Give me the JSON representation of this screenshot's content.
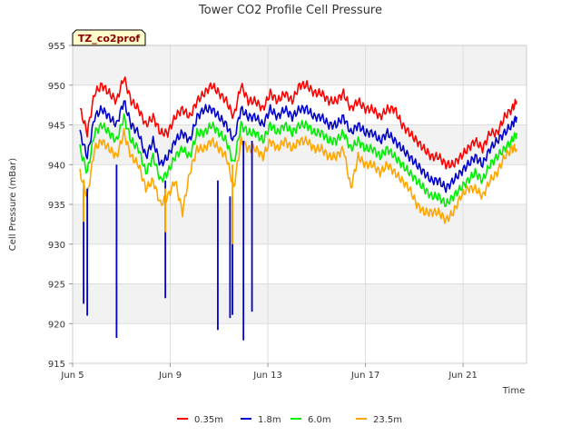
{
  "chart_data": {
    "type": "line",
    "title": "Tower CO2 Profile Cell Pressure",
    "badge": "TZ_co2prof",
    "xlabel": "Time",
    "ylabel": "Cell Pressure (mBar)",
    "xlim": [
      5.0,
      23.6
    ],
    "ylim": [
      915,
      955
    ],
    "x_ticks": [
      {
        "value": 5,
        "label": "Jun 5"
      },
      {
        "value": 9,
        "label": "Jun 9"
      },
      {
        "value": 13,
        "label": "Jun 13"
      },
      {
        "value": 17,
        "label": "Jun 17"
      },
      {
        "value": 21,
        "label": "Jun 21"
      }
    ],
    "y_ticks": [
      915,
      920,
      925,
      930,
      935,
      940,
      945,
      950,
      955
    ],
    "grid": true,
    "legend_position": "bottom",
    "series": [
      {
        "name": "0.35m",
        "color": "#ff0000",
        "x": [
          5.3,
          5.6,
          5.9,
          6.2,
          6.5,
          6.8,
          7.1,
          7.4,
          7.7,
          8.0,
          8.3,
          8.6,
          8.9,
          9.2,
          9.5,
          9.8,
          10.1,
          10.4,
          10.7,
          11.0,
          11.3,
          11.6,
          11.9,
          12.2,
          12.5,
          12.8,
          13.1,
          13.4,
          13.7,
          14.0,
          14.3,
          14.6,
          14.9,
          15.2,
          15.5,
          15.8,
          16.1,
          16.4,
          16.7,
          17.0,
          17.3,
          17.6,
          17.9,
          18.2,
          18.5,
          18.8,
          19.1,
          19.4,
          19.7,
          20.0,
          20.3,
          20.6,
          20.9,
          21.2,
          21.5,
          21.8,
          22.1,
          22.4,
          22.7,
          23.0,
          23.2
        ],
        "values": [
          947,
          944,
          949,
          950,
          949,
          948,
          951,
          948,
          947,
          945,
          946,
          944,
          944,
          946,
          947,
          946,
          948,
          949,
          950,
          949,
          948,
          946,
          950,
          948,
          948,
          947,
          949,
          948,
          949,
          948,
          950,
          950,
          949,
          949,
          948,
          948,
          949,
          947,
          948,
          947,
          947,
          946,
          947,
          947,
          945,
          944,
          943,
          942,
          941,
          941,
          940,
          940,
          941,
          942,
          943,
          942,
          944,
          944,
          946,
          947,
          948
        ]
      },
      {
        "name": "1.8m",
        "color": "#0000cc",
        "x": [
          5.3,
          5.6,
          5.9,
          6.2,
          6.5,
          6.8,
          7.1,
          7.4,
          7.7,
          8.0,
          8.3,
          8.6,
          8.9,
          9.2,
          9.5,
          9.8,
          10.1,
          10.4,
          10.7,
          11.0,
          11.3,
          11.6,
          11.9,
          12.2,
          12.5,
          12.8,
          13.1,
          13.4,
          13.7,
          14.0,
          14.3,
          14.6,
          14.9,
          15.2,
          15.5,
          15.8,
          16.1,
          16.4,
          16.7,
          17.0,
          17.3,
          17.6,
          17.9,
          18.2,
          18.5,
          18.8,
          19.1,
          19.4,
          19.7,
          20.0,
          20.3,
          20.6,
          20.9,
          21.2,
          21.5,
          21.8,
          22.1,
          22.4,
          22.7,
          23.0,
          23.2
        ],
        "values": [
          944,
          941,
          946,
          947,
          946,
          945,
          948,
          945,
          944,
          941,
          943,
          940,
          941,
          943,
          944,
          943,
          946,
          947,
          947,
          946,
          945,
          943,
          947,
          946,
          946,
          945,
          947,
          946,
          947,
          946,
          947,
          947,
          946,
          946,
          945,
          945,
          946,
          944,
          945,
          944,
          944,
          943,
          944,
          943,
          942,
          941,
          940,
          939,
          938,
          938,
          937,
          938,
          939,
          940,
          941,
          940,
          942,
          943,
          944,
          945,
          946
        ]
      },
      {
        "name": "6.0m",
        "color": "#00ee00",
        "x": [
          5.3,
          5.6,
          5.9,
          6.2,
          6.5,
          6.8,
          7.1,
          7.4,
          7.7,
          8.0,
          8.3,
          8.6,
          8.9,
          9.2,
          9.5,
          9.8,
          10.1,
          10.4,
          10.7,
          11.0,
          11.3,
          11.6,
          11.9,
          12.2,
          12.5,
          12.8,
          13.1,
          13.4,
          13.7,
          14.0,
          14.3,
          14.6,
          14.9,
          15.2,
          15.5,
          15.8,
          16.1,
          16.4,
          16.7,
          17.0,
          17.3,
          17.6,
          17.9,
          18.2,
          18.5,
          18.8,
          19.1,
          19.4,
          19.7,
          20.0,
          20.3,
          20.6,
          20.9,
          21.2,
          21.5,
          21.8,
          22.1,
          22.4,
          22.7,
          23.0,
          23.2
        ],
        "values": [
          942,
          939,
          944,
          945,
          944,
          943,
          946,
          943,
          942,
          939,
          941,
          938,
          939,
          941,
          942,
          941,
          944,
          944,
          945,
          944,
          943,
          940,
          945,
          944,
          944,
          943,
          945,
          944,
          945,
          944,
          945,
          945,
          944,
          944,
          943,
          943,
          944,
          942,
          943,
          942,
          942,
          941,
          942,
          941,
          940,
          939,
          938,
          937,
          936,
          936,
          935,
          936,
          937,
          938,
          939,
          938,
          940,
          941,
          942,
          943,
          944
        ]
      },
      {
        "name": "23.5m",
        "color": "#ffa500",
        "x": [
          5.3,
          5.6,
          5.9,
          6.2,
          6.5,
          6.8,
          7.1,
          7.4,
          7.7,
          8.0,
          8.3,
          8.6,
          8.9,
          9.2,
          9.5,
          9.8,
          10.1,
          10.4,
          10.7,
          11.0,
          11.3,
          11.6,
          11.9,
          12.2,
          12.5,
          12.8,
          13.1,
          13.4,
          13.7,
          14.0,
          14.3,
          14.6,
          14.9,
          15.2,
          15.5,
          15.8,
          16.1,
          16.4,
          16.7,
          17.0,
          17.3,
          17.6,
          17.9,
          18.2,
          18.5,
          18.8,
          19.1,
          19.4,
          19.7,
          20.0,
          20.3,
          20.6,
          20.9,
          21.2,
          21.5,
          21.8,
          22.1,
          22.4,
          22.7,
          23.0,
          23.2
        ],
        "values": [
          939,
          936,
          942,
          943,
          942,
          941,
          944,
          941,
          940,
          937,
          938,
          935,
          936,
          938,
          934,
          939,
          942,
          942,
          943,
          942,
          941,
          937,
          943,
          942,
          942,
          941,
          943,
          942,
          943,
          942,
          943,
          943,
          942,
          942,
          941,
          941,
          942,
          937,
          941,
          940,
          940,
          939,
          940,
          939,
          938,
          937,
          935,
          934,
          934,
          934,
          933,
          934,
          936,
          937,
          937,
          936,
          938,
          939,
          941,
          942,
          942
        ]
      }
    ],
    "spikes": [
      {
        "series": "1.8m",
        "x": 5.45,
        "from": 937,
        "to": 922.5
      },
      {
        "series": "1.8m",
        "x": 5.6,
        "from": 937,
        "to": 921
      },
      {
        "series": "1.8m",
        "x": 6.8,
        "from": 940,
        "to": 918.2
      },
      {
        "series": "1.8m",
        "x": 8.8,
        "from": 938,
        "to": 923.2
      },
      {
        "series": "1.8m",
        "x": 10.95,
        "from": 938,
        "to": 919.2
      },
      {
        "series": "1.8m",
        "x": 11.45,
        "from": 936,
        "to": 920.7
      },
      {
        "series": "1.8m",
        "x": 11.55,
        "from": 936,
        "to": 921.1
      },
      {
        "series": "1.8m",
        "x": 12.0,
        "from": 943,
        "to": 917.9
      },
      {
        "series": "1.8m",
        "x": 12.35,
        "from": 943,
        "to": 921.5
      },
      {
        "series": "23.5m",
        "x": 5.45,
        "from": 938,
        "to": 932.8
      },
      {
        "series": "23.5m",
        "x": 8.8,
        "from": 937,
        "to": 931.5
      },
      {
        "series": "23.5m",
        "x": 11.55,
        "from": 940,
        "to": 930
      }
    ]
  }
}
